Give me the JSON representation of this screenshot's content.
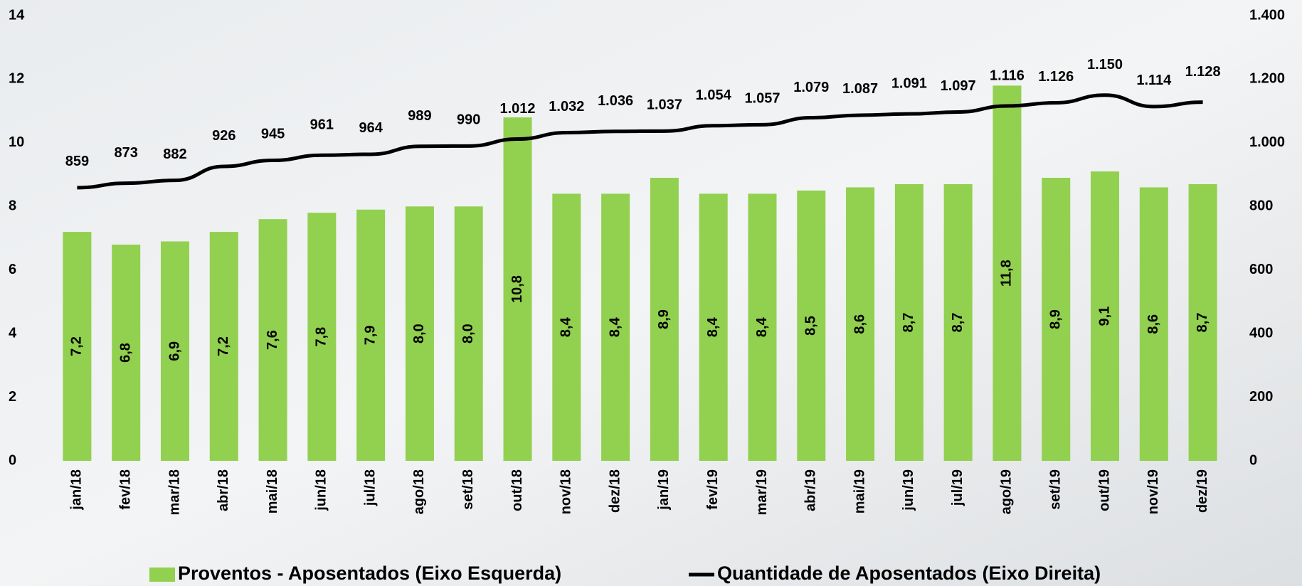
{
  "chart_data": {
    "type": "bar_line",
    "categories": [
      "jan/18",
      "fev/18",
      "mar/18",
      "abr/18",
      "mai/18",
      "jun/18",
      "jul/18",
      "ago/18",
      "set/18",
      "out/18",
      "nov/18",
      "dez/18",
      "jan/19",
      "fev/19",
      "mar/19",
      "abr/19",
      "mai/19",
      "jun/19",
      "jul/19",
      "ago/19",
      "set/19",
      "out/19",
      "nov/19",
      "dez/19"
    ],
    "series": [
      {
        "name": "Proventos - Aposentados (Eixo Esquerda)",
        "type": "bar",
        "color": "#92d050",
        "values": [
          7.2,
          6.8,
          6.9,
          7.2,
          7.6,
          7.8,
          7.9,
          8.0,
          8.0,
          10.8,
          8.4,
          8.4,
          8.9,
          8.4,
          8.4,
          8.5,
          8.6,
          8.7,
          8.7,
          11.8,
          8.9,
          9.1,
          8.6,
          8.7
        ],
        "value_labels": [
          "7,2",
          "6,8",
          "6,9",
          "7,2",
          "7,6",
          "7,8",
          "7,9",
          "8,0",
          "8,0",
          "10,8",
          "8,4",
          "8,4",
          "8,9",
          "8,4",
          "8,4",
          "8,5",
          "8,6",
          "8,7",
          "8,7",
          "11,8",
          "8,9",
          "9,1",
          "8,6",
          "8,7"
        ]
      },
      {
        "name": "Quantidade de Aposentados (Eixo Direita)",
        "type": "line",
        "color": "#000000",
        "axis": "y2",
        "values": [
          859,
          873,
          882,
          926,
          945,
          961,
          964,
          989,
          990,
          1012,
          1032,
          1036,
          1037,
          1054,
          1057,
          1079,
          1087,
          1091,
          1097,
          1116,
          1126,
          1150,
          1114,
          1128
        ],
        "value_labels": [
          "859",
          "873",
          "882",
          "926",
          "945",
          "961",
          "964",
          "989",
          "990",
          "1.012",
          "1.032",
          "1.036",
          "1.037",
          "1.054",
          "1.057",
          "1.079",
          "1.087",
          "1.091",
          "1.097",
          "1.116",
          "1.126",
          "1.150",
          "1.114",
          "1.128"
        ]
      }
    ],
    "ylim": [
      0,
      14
    ],
    "yticks": [
      0,
      2,
      4,
      6,
      8,
      10,
      12,
      14
    ],
    "y2lim": [
      0,
      1400
    ],
    "y2ticks": [
      0,
      200,
      400,
      600,
      800,
      {
        "value": 1000,
        "label": "1.000"
      },
      {
        "value": 1200,
        "label": "1.200"
      },
      {
        "value": 1400,
        "label": "1.400"
      }
    ],
    "grid": false,
    "legend": "bottom"
  }
}
